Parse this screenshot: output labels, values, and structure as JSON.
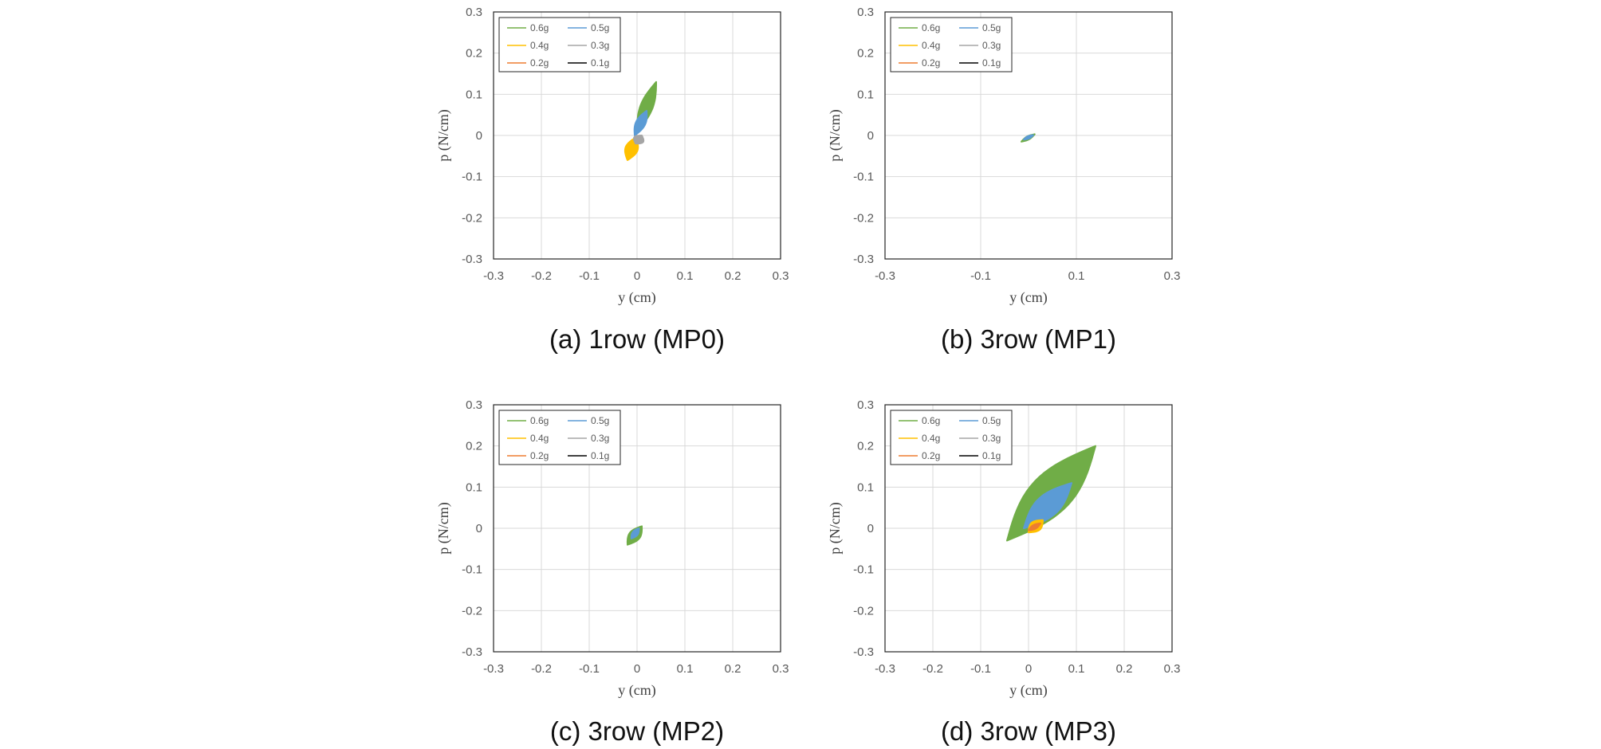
{
  "chart_data": [
    {
      "type": "line",
      "caption": "(a) 1row (MP0)",
      "xlabel": "y (cm)",
      "ylabel": "p (N/cm)",
      "xlim": [
        -0.3,
        0.3
      ],
      "ylim": [
        -0.3,
        0.3
      ],
      "xticks": [
        "-0.3",
        "-0.2",
        "-0.1",
        "0",
        "0.1",
        "0.2",
        "0.3"
      ],
      "yticks": [
        "0.3",
        "0.2",
        "0.1",
        "0",
        "-0.1",
        "-0.2",
        "-0.3"
      ],
      "grid": true,
      "legend": {
        "position": "top-left",
        "entries": [
          "0.6g",
          "0.5g",
          "0.4g",
          "0.3g",
          "0.2g",
          "0.1g"
        ]
      },
      "series": [
        {
          "name": "0.6g",
          "color": "#70ad47",
          "from": [
            0.0,
            0.01
          ],
          "to": [
            0.04,
            0.13
          ],
          "width": 0.013
        },
        {
          "name": "0.5g",
          "color": "#5b9bd5",
          "from": [
            -0.005,
            0.0
          ],
          "to": [
            0.02,
            0.06
          ],
          "width": 0.01
        },
        {
          "name": "0.4g",
          "color": "#ffc000",
          "from": [
            -0.02,
            -0.06
          ],
          "to": [
            -0.003,
            -0.005
          ],
          "width": 0.013
        },
        {
          "name": "0.3g",
          "color": "#a5a5a5",
          "from": [
            -0.003,
            -0.02
          ],
          "to": [
            0.01,
            0.0
          ],
          "width": 0.011
        },
        {
          "name": "0.2g",
          "color": "#ed7d31",
          "from": [
            0.0,
            0.0
          ],
          "to": [
            0.0,
            0.0
          ],
          "width": 0
        },
        {
          "name": "0.1g",
          "color": "#000000",
          "from": [
            0.0,
            0.0
          ],
          "to": [
            0.0,
            0.0
          ],
          "width": 0
        }
      ]
    },
    {
      "type": "line",
      "caption": "(b) 3row (MP1)",
      "xlabel": "y (cm)",
      "ylabel": "p (N/cm)",
      "xlim": [
        -0.3,
        0.3
      ],
      "ylim": [
        -0.3,
        0.3
      ],
      "xticks": [
        "-0.3",
        "-0.1",
        "0.1",
        "0.3"
      ],
      "yticks": [
        "0.3",
        "0.2",
        "0.1",
        "0",
        "-0.1",
        "-0.2",
        "-0.3"
      ],
      "grid": true,
      "legend": {
        "position": "top-left",
        "entries": [
          "0.6g",
          "0.5g",
          "0.4g",
          "0.3g",
          "0.2g",
          "0.1g"
        ]
      },
      "series": [
        {
          "name": "0.6g",
          "color": "#70ad47",
          "from": [
            -0.015,
            -0.015
          ],
          "to": [
            0.013,
            0.003
          ],
          "width": 0.004
        },
        {
          "name": "0.5g",
          "color": "#5b9bd5",
          "from": [
            -0.01,
            -0.01
          ],
          "to": [
            0.01,
            0.001
          ],
          "width": 0.003
        },
        {
          "name": "0.4g",
          "color": "#ffc000",
          "from": [
            0.0,
            0.0
          ],
          "to": [
            0.0,
            0.0
          ],
          "width": 0
        },
        {
          "name": "0.3g",
          "color": "#a5a5a5",
          "from": [
            0.0,
            0.0
          ],
          "to": [
            0.0,
            0.0
          ],
          "width": 0
        },
        {
          "name": "0.2g",
          "color": "#ed7d31",
          "from": [
            0.0,
            0.0
          ],
          "to": [
            0.0,
            0.0
          ],
          "width": 0
        },
        {
          "name": "0.1g",
          "color": "#000000",
          "from": [
            0.0,
            0.0
          ],
          "to": [
            0.0,
            0.0
          ],
          "width": 0
        }
      ]
    },
    {
      "type": "line",
      "caption": "(c) 3row (MP2)",
      "xlabel": "y (cm)",
      "ylabel": "p (N/cm)",
      "xlim": [
        -0.3,
        0.3
      ],
      "ylim": [
        -0.3,
        0.3
      ],
      "xticks": [
        "-0.3",
        "-0.2",
        "-0.1",
        "0",
        "0.1",
        "0.2",
        "0.3"
      ],
      "yticks": [
        "0.3",
        "0.2",
        "0.1",
        "0",
        "-0.1",
        "-0.2",
        "-0.3"
      ],
      "grid": true,
      "legend": {
        "position": "top-left",
        "entries": [
          "0.6g",
          "0.5g",
          "0.4g",
          "0.3g",
          "0.2g",
          "0.1g"
        ]
      },
      "series": [
        {
          "name": "0.6g",
          "color": "#70ad47",
          "from": [
            -0.02,
            -0.04
          ],
          "to": [
            0.01,
            0.005
          ],
          "width": 0.012
        },
        {
          "name": "0.5g",
          "color": "#5b9bd5",
          "from": [
            -0.012,
            -0.025
          ],
          "to": [
            0.004,
            0.0
          ],
          "width": 0.006
        },
        {
          "name": "0.4g",
          "color": "#ffc000",
          "from": [
            0.0,
            0.0
          ],
          "to": [
            0.0,
            0.0
          ],
          "width": 0
        },
        {
          "name": "0.3g",
          "color": "#a5a5a5",
          "from": [
            0.0,
            0.0
          ],
          "to": [
            0.0,
            0.0
          ],
          "width": 0
        },
        {
          "name": "0.2g",
          "color": "#ed7d31",
          "from": [
            0.0,
            0.0
          ],
          "to": [
            0.0,
            0.0
          ],
          "width": 0
        },
        {
          "name": "0.1g",
          "color": "#000000",
          "from": [
            0.0,
            0.0
          ],
          "to": [
            0.0,
            0.0
          ],
          "width": 0
        }
      ]
    },
    {
      "type": "line",
      "caption": "(d) 3row (MP3)",
      "xlabel": "y (cm)",
      "ylabel": "p (N/cm)",
      "xlim": [
        -0.3,
        0.3
      ],
      "ylim": [
        -0.3,
        0.3
      ],
      "xticks": [
        "-0.3",
        "-0.2",
        "-0.1",
        "0",
        "0.1",
        "0.2",
        "0.3"
      ],
      "yticks": [
        "0.3",
        "0.2",
        "0.1",
        "0",
        "-0.1",
        "-0.2",
        "-0.3"
      ],
      "grid": true,
      "legend": {
        "position": "top-left",
        "entries": [
          "0.6g",
          "0.5g",
          "0.4g",
          "0.3g",
          "0.2g",
          "0.1g"
        ]
      },
      "series": [
        {
          "name": "0.6g",
          "color": "#70ad47",
          "from": [
            -0.045,
            -0.03
          ],
          "to": [
            0.14,
            0.2
          ],
          "width": 0.045
        },
        {
          "name": "0.5g",
          "color": "#5b9bd5",
          "from": [
            -0.01,
            0.0
          ],
          "to": [
            0.09,
            0.11
          ],
          "width": 0.025
        },
        {
          "name": "0.4g",
          "color": "#ffc000",
          "from": [
            0.0,
            -0.01
          ],
          "to": [
            0.03,
            0.02
          ],
          "width": 0.012
        },
        {
          "name": "0.3g",
          "color": "#a5a5a5",
          "from": [
            0.0,
            0.0
          ],
          "to": [
            0.0,
            0.0
          ],
          "width": 0
        },
        {
          "name": "0.2g",
          "color": "#ed7d31",
          "from": [
            0.0,
            -0.005
          ],
          "to": [
            0.025,
            0.012
          ],
          "width": 0.005
        },
        {
          "name": "0.1g",
          "color": "#000000",
          "from": [
            0.0,
            0.0
          ],
          "to": [
            0.0,
            0.0
          ],
          "width": 0
        }
      ]
    }
  ]
}
